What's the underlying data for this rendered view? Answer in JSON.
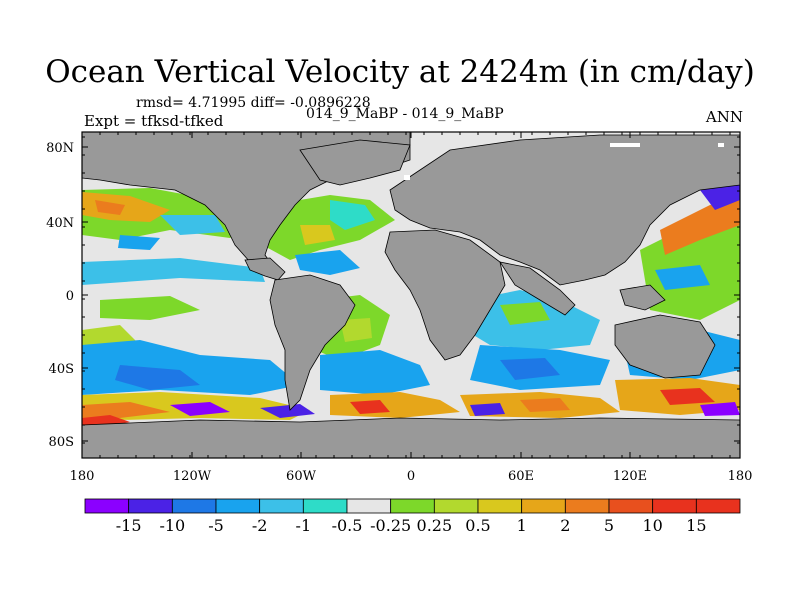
{
  "title": "Ocean Vertical Velocity at 2424m (in cm/day)",
  "stats": "rmsd= 4.71995 diff= -0.0896228",
  "experiment": "Expt = tfksd-tfked",
  "cases": "014_9_MaBP - 014_9_MaBP",
  "season": "ANN",
  "lat_ticks": [
    "80N",
    "40N",
    "0",
    "40S",
    "80S"
  ],
  "lon_ticks": [
    "180",
    "120W",
    "60W",
    "0",
    "60E",
    "120E",
    "180"
  ],
  "colorbar": {
    "colors": [
      "#8b00ff",
      "#4b22e6",
      "#1e78e6",
      "#19a3ee",
      "#3cc0e8",
      "#2edcc8",
      "#e6e6e6",
      "#7dd82a",
      "#b2d92e",
      "#d9c81e",
      "#e6a619",
      "#eb7c1e",
      "#e8501e",
      "#e8321e"
    ],
    "labels": [
      "-15",
      "-10",
      "-5",
      "-2",
      "-1",
      "-0.5",
      "-0.25",
      "0.25",
      "0.5",
      "1",
      "2",
      "5",
      "10",
      "15"
    ]
  },
  "land_color": "#999999"
}
